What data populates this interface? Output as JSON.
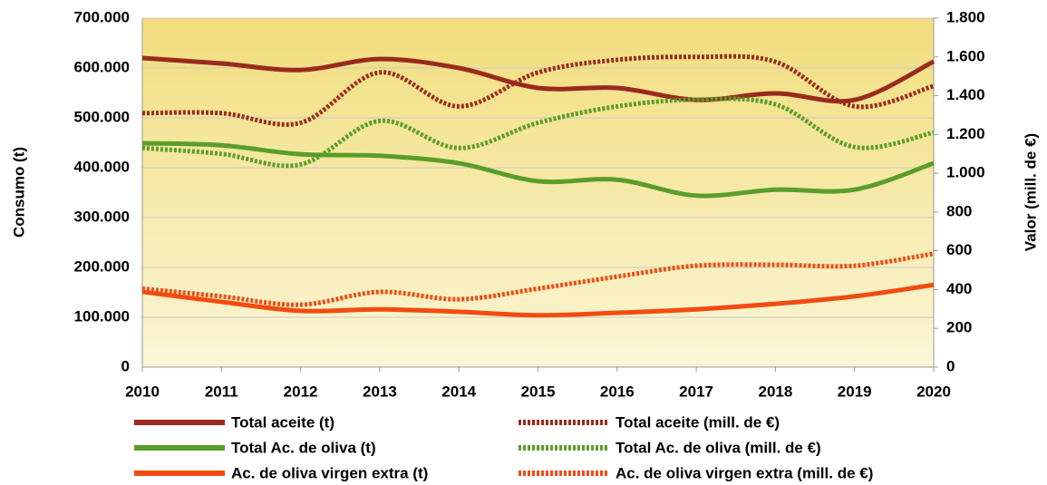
{
  "chart_data": {
    "type": "line",
    "x": [
      2010,
      2011,
      2012,
      2013,
      2014,
      2015,
      2016,
      2017,
      2018,
      2019,
      2020
    ],
    "xlim": [
      2010,
      2020
    ],
    "xticks": [
      2010,
      2011,
      2012,
      2013,
      2014,
      2015,
      2016,
      2017,
      2018,
      2019,
      2020
    ],
    "ylabel": "Consumo (t)",
    "y2label": "Valor (mill. de €)",
    "ylim": [
      0,
      700000
    ],
    "yticks": [
      0,
      {
        "value": 100000,
        "label": "100.000"
      },
      {
        "value": 200000,
        "label": "200.000"
      },
      {
        "value": 300000,
        "label": "300.000"
      },
      {
        "value": 400000,
        "label": "400.000"
      },
      {
        "value": 500000,
        "label": "500.000"
      },
      {
        "value": 600000,
        "label": "600.000"
      },
      {
        "value": 700000,
        "label": "700.000"
      }
    ],
    "y2lim": [
      0,
      1800
    ],
    "y2ticks": [
      0,
      200,
      400,
      600,
      800,
      {
        "value": 1000,
        "label": "1.000"
      },
      {
        "value": 1200,
        "label": "1.200"
      },
      {
        "value": 1400,
        "label": "1.400"
      },
      {
        "value": 1600,
        "label": "1.600"
      },
      {
        "value": 1800,
        "label": "1.800"
      }
    ],
    "grid": true,
    "legend": "bottom",
    "series": [
      {
        "name": "Total aceite (t)",
        "color": "#9b2a1e",
        "style": "solid",
        "values": [
          620000,
          609000,
          596000,
          618000,
          600000,
          560000,
          560000,
          536000,
          549000,
          536000,
          613000
        ]
      },
      {
        "name": "Total aceite (mill. de €)",
        "color": "#9b2a1e",
        "style": "dotted",
        "axis": "y2",
        "values": [
          1310,
          1310,
          1260,
          1520,
          1345,
          1520,
          1585,
          1600,
          1575,
          1345,
          1450
        ]
      },
      {
        "name": "Total Ac. de oliva (t)",
        "color": "#5a9e2a",
        "style": "solid",
        "values": [
          449000,
          445000,
          427000,
          424000,
          409000,
          373000,
          376000,
          344000,
          356000,
          356000,
          409000
        ]
      },
      {
        "name": "Total Ac. de oliva (mill. de €)",
        "color": "#5a9e2a",
        "style": "dotted",
        "axis": "y2",
        "values": [
          1130,
          1100,
          1045,
          1270,
          1130,
          1260,
          1345,
          1380,
          1355,
          1135,
          1210
        ]
      },
      {
        "name": "Ac. de oliva virgen extra (t)",
        "color": "#f24b12",
        "style": "solid",
        "values": [
          151000,
          131000,
          113000,
          116000,
          111000,
          104000,
          109000,
          116000,
          127000,
          142000,
          165000
        ]
      },
      {
        "name": "Ac. de oliva virgen extra (mill. de €)",
        "color": "#f24b12",
        "style": "dotted",
        "axis": "y2",
        "values": [
          405,
          365,
          322,
          388,
          350,
          405,
          467,
          523,
          528,
          523,
          585
        ]
      }
    ]
  }
}
